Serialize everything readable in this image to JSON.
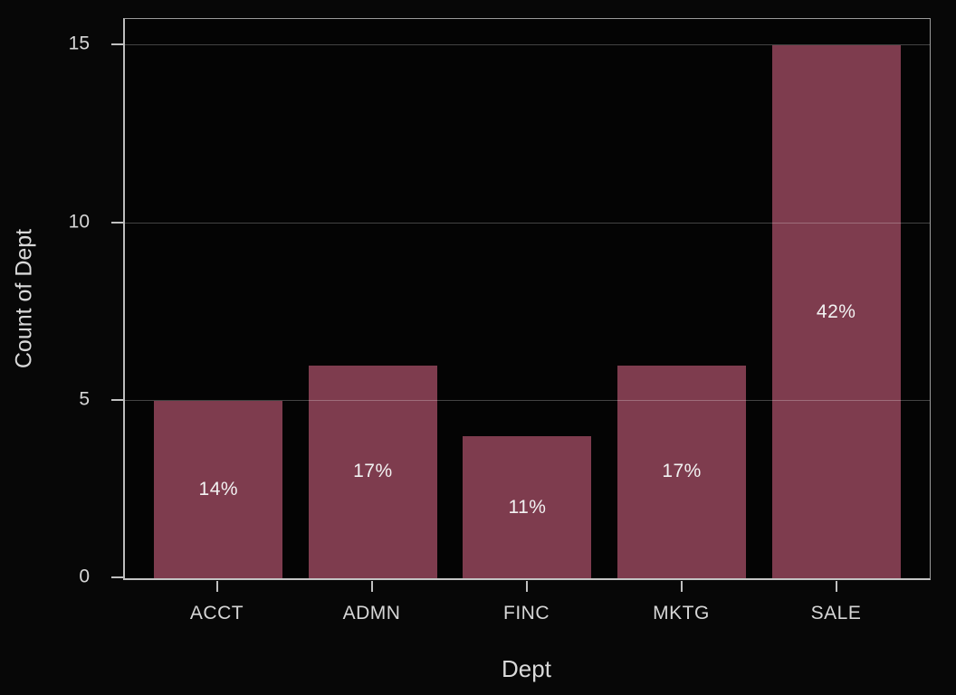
{
  "chart_data": {
    "type": "bar",
    "title": "",
    "categories": [
      "ACCT",
      "ADMN",
      "FINC",
      "MKTG",
      "SALE"
    ],
    "values": [
      5,
      6,
      4,
      6,
      15
    ],
    "bar_labels": [
      "14%",
      "17%",
      "11%",
      "17%",
      "42%"
    ],
    "xlabel": "Dept",
    "ylabel": "Count of Dept",
    "yticks": [
      "0",
      "5",
      "10",
      "15"
    ],
    "ytick_values": [
      0,
      5,
      10,
      15
    ],
    "ylim": [
      0,
      15.75
    ],
    "grid": "horizontal-major",
    "legend": "none",
    "colors": {
      "bar_fill": "#7e3c4e",
      "background": "#070707",
      "plot_background": "#040404",
      "axis_line": "#c0c0c0",
      "frame_line": "#9a9a9a",
      "gridline": "rgba(255,255,255,0.25)",
      "tick_text": "#d6d6d6",
      "bar_label_text": "#f2f2f2"
    }
  }
}
